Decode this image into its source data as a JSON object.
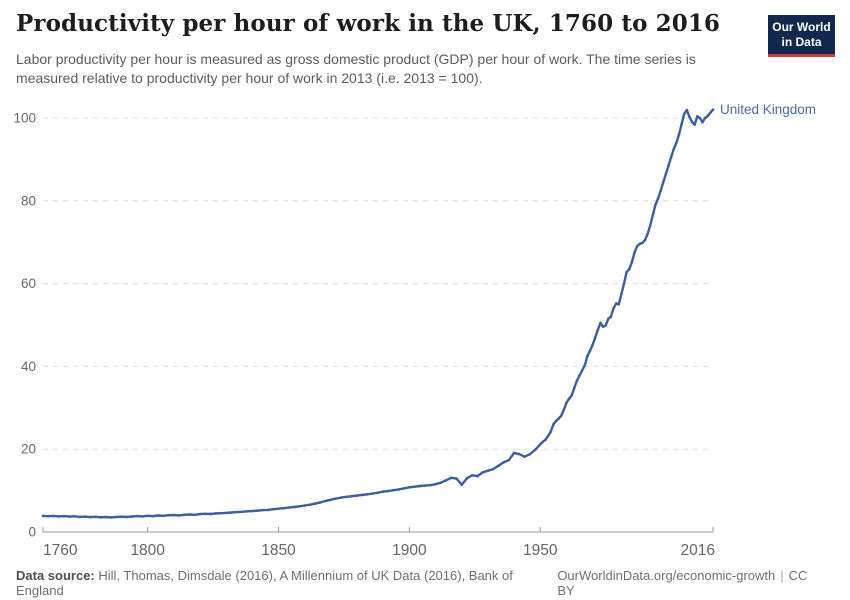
{
  "header": {
    "title": "Productivity per hour of work in the UK, 1760 to 2016",
    "subtitle": "Labor productivity per hour is measured as gross domestic product (GDP) per hour of work. The time series is measured relative to productivity per hour of work in 2013 (i.e. 2013 = 100).",
    "logo": {
      "line1": "Our World",
      "line2": "in Data"
    }
  },
  "colors": {
    "line": "#3e5f99",
    "series_label": "#4C6A9C",
    "grid": "#dcdcdc",
    "axis": "#9a9a9a",
    "logo_bg": "#12294d",
    "logo_red": "#d23b41"
  },
  "chart_data": {
    "type": "line",
    "title": "Productivity per hour of work in the UK, 1760 to 2016",
    "xlabel": "",
    "ylabel": "",
    "xlim": [
      1760,
      2016
    ],
    "ylim": [
      0,
      105
    ],
    "x_ticks": [
      1760,
      1800,
      1850,
      1900,
      1950,
      2016
    ],
    "y_ticks": [
      0,
      20,
      40,
      60,
      80,
      100
    ],
    "grid": "horizontal-dashed",
    "legend": "end-of-line-label",
    "series": [
      {
        "name": "United Kingdom",
        "color": "#3e5f99",
        "label_color": "#4C6A9C",
        "points": [
          [
            1760,
            3.9
          ],
          [
            1762,
            3.82
          ],
          [
            1764,
            3.9
          ],
          [
            1766,
            3.78
          ],
          [
            1768,
            3.85
          ],
          [
            1770,
            3.72
          ],
          [
            1772,
            3.8
          ],
          [
            1774,
            3.65
          ],
          [
            1776,
            3.72
          ],
          [
            1778,
            3.6
          ],
          [
            1780,
            3.66
          ],
          [
            1782,
            3.55
          ],
          [
            1784,
            3.62
          ],
          [
            1786,
            3.52
          ],
          [
            1788,
            3.62
          ],
          [
            1790,
            3.7
          ],
          [
            1792,
            3.62
          ],
          [
            1794,
            3.75
          ],
          [
            1796,
            3.85
          ],
          [
            1798,
            3.78
          ],
          [
            1800,
            3.92
          ],
          [
            1802,
            3.85
          ],
          [
            1804,
            3.98
          ],
          [
            1806,
            3.92
          ],
          [
            1808,
            4.05
          ],
          [
            1810,
            4.1
          ],
          [
            1812,
            4.02
          ],
          [
            1814,
            4.15
          ],
          [
            1816,
            4.22
          ],
          [
            1818,
            4.15
          ],
          [
            1820,
            4.32
          ],
          [
            1822,
            4.4
          ],
          [
            1824,
            4.35
          ],
          [
            1826,
            4.5
          ],
          [
            1828,
            4.55
          ],
          [
            1830,
            4.62
          ],
          [
            1832,
            4.72
          ],
          [
            1834,
            4.8
          ],
          [
            1836,
            4.88
          ],
          [
            1838,
            5.0
          ],
          [
            1840,
            5.08
          ],
          [
            1842,
            5.15
          ],
          [
            1844,
            5.28
          ],
          [
            1846,
            5.35
          ],
          [
            1848,
            5.5
          ],
          [
            1850,
            5.62
          ],
          [
            1852,
            5.75
          ],
          [
            1854,
            5.9
          ],
          [
            1856,
            6.05
          ],
          [
            1858,
            6.2
          ],
          [
            1860,
            6.4
          ],
          [
            1862,
            6.6
          ],
          [
            1864,
            6.85
          ],
          [
            1866,
            7.15
          ],
          [
            1868,
            7.5
          ],
          [
            1870,
            7.8
          ],
          [
            1872,
            8.1
          ],
          [
            1874,
            8.3
          ],
          [
            1876,
            8.5
          ],
          [
            1878,
            8.65
          ],
          [
            1880,
            8.8
          ],
          [
            1882,
            8.95
          ],
          [
            1884,
            9.1
          ],
          [
            1886,
            9.3
          ],
          [
            1888,
            9.5
          ],
          [
            1890,
            9.75
          ],
          [
            1892,
            9.9
          ],
          [
            1894,
            10.1
          ],
          [
            1896,
            10.3
          ],
          [
            1898,
            10.55
          ],
          [
            1900,
            10.8
          ],
          [
            1902,
            10.95
          ],
          [
            1904,
            11.1
          ],
          [
            1906,
            11.2
          ],
          [
            1908,
            11.3
          ],
          [
            1910,
            11.55
          ],
          [
            1912,
            11.9
          ],
          [
            1914,
            12.5
          ],
          [
            1916,
            13.1
          ],
          [
            1918,
            12.9
          ],
          [
            1920,
            11.4
          ],
          [
            1922,
            13.0
          ],
          [
            1924,
            13.7
          ],
          [
            1926,
            13.5
          ],
          [
            1928,
            14.4
          ],
          [
            1930,
            14.8
          ],
          [
            1932,
            15.2
          ],
          [
            1934,
            16.0
          ],
          [
            1936,
            16.8
          ],
          [
            1938,
            17.4
          ],
          [
            1940,
            19.1
          ],
          [
            1942,
            18.8
          ],
          [
            1944,
            18.2
          ],
          [
            1946,
            18.8
          ],
          [
            1948,
            19.8
          ],
          [
            1950,
            21.2
          ],
          [
            1951,
            21.8
          ],
          [
            1952,
            22.3
          ],
          [
            1953,
            23.2
          ],
          [
            1954,
            24.2
          ],
          [
            1955,
            26.0
          ],
          [
            1956,
            26.8
          ],
          [
            1957,
            27.4
          ],
          [
            1958,
            28.1
          ],
          [
            1959,
            29.5
          ],
          [
            1960,
            31.2
          ],
          [
            1961,
            32.2
          ],
          [
            1962,
            33.0
          ],
          [
            1963,
            34.8
          ],
          [
            1964,
            36.5
          ],
          [
            1965,
            37.8
          ],
          [
            1966,
            39.0
          ],
          [
            1967,
            40.3
          ],
          [
            1968,
            42.5
          ],
          [
            1969,
            43.8
          ],
          [
            1970,
            45.2
          ],
          [
            1971,
            47.0
          ],
          [
            1972,
            48.8
          ],
          [
            1973,
            50.5
          ],
          [
            1974,
            49.6
          ],
          [
            1975,
            49.9
          ],
          [
            1976,
            51.5
          ],
          [
            1977,
            52.0
          ],
          [
            1978,
            54.0
          ],
          [
            1979,
            55.2
          ],
          [
            1980,
            55.0
          ],
          [
            1981,
            57.5
          ],
          [
            1982,
            60.0
          ],
          [
            1983,
            62.8
          ],
          [
            1984,
            63.5
          ],
          [
            1985,
            65.2
          ],
          [
            1986,
            67.5
          ],
          [
            1987,
            69.0
          ],
          [
            1988,
            69.6
          ],
          [
            1989,
            69.8
          ],
          [
            1990,
            70.5
          ],
          [
            1991,
            72.0
          ],
          [
            1992,
            74.0
          ],
          [
            1993,
            76.5
          ],
          [
            1994,
            79.0
          ],
          [
            1995,
            80.5
          ],
          [
            1996,
            82.5
          ],
          [
            1997,
            84.5
          ],
          [
            1998,
            86.5
          ],
          [
            1999,
            88.5
          ],
          [
            2000,
            90.5
          ],
          [
            2001,
            92.5
          ],
          [
            2002,
            94.0
          ],
          [
            2003,
            96.0
          ],
          [
            2004,
            98.5
          ],
          [
            2005,
            101.0
          ],
          [
            2006,
            101.9
          ],
          [
            2007,
            100.3
          ],
          [
            2008,
            99.0
          ],
          [
            2009,
            98.4
          ],
          [
            2010,
            100.4
          ],
          [
            2011,
            100.0
          ],
          [
            2012,
            99.0
          ],
          [
            2013,
            100.0
          ],
          [
            2014,
            100.5
          ],
          [
            2015,
            101.3
          ],
          [
            2016,
            102.0
          ]
        ]
      }
    ]
  },
  "footer": {
    "datasource_label": "Data source:",
    "datasource_text": "Hill, Thomas, Dimsdale (2016), A Millennium of UK Data (2016), Bank of England",
    "url": "OurWorldinData.org/economic-growth",
    "separator": "|",
    "license": "CC BY"
  }
}
